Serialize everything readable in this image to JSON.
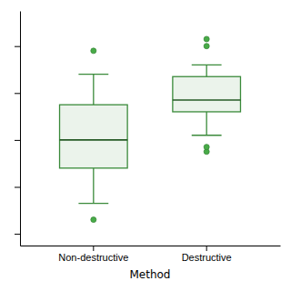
{
  "chart_data": {
    "type": "box",
    "categories": [
      "Non-destructive",
      "Destructive"
    ],
    "xlabel": "Method",
    "whislo": [
      0.13,
      0.42
    ],
    "q1": [
      0.28,
      0.52
    ],
    "med": [
      0.4,
      0.57
    ],
    "q3": [
      0.55,
      0.67
    ],
    "whishi": [
      0.68,
      0.72
    ],
    "fliers": [
      [
        0.78,
        0.06
      ],
      [
        0.8,
        0.83,
        0.35,
        0.37
      ]
    ],
    "color": "#3a8a3a",
    "ylim": [
      -0.05,
      0.95
    ],
    "yticks": [
      0.0,
      0.2,
      0.4,
      0.6,
      0.8
    ],
    "tick_labels": "x",
    "grid": false
  }
}
